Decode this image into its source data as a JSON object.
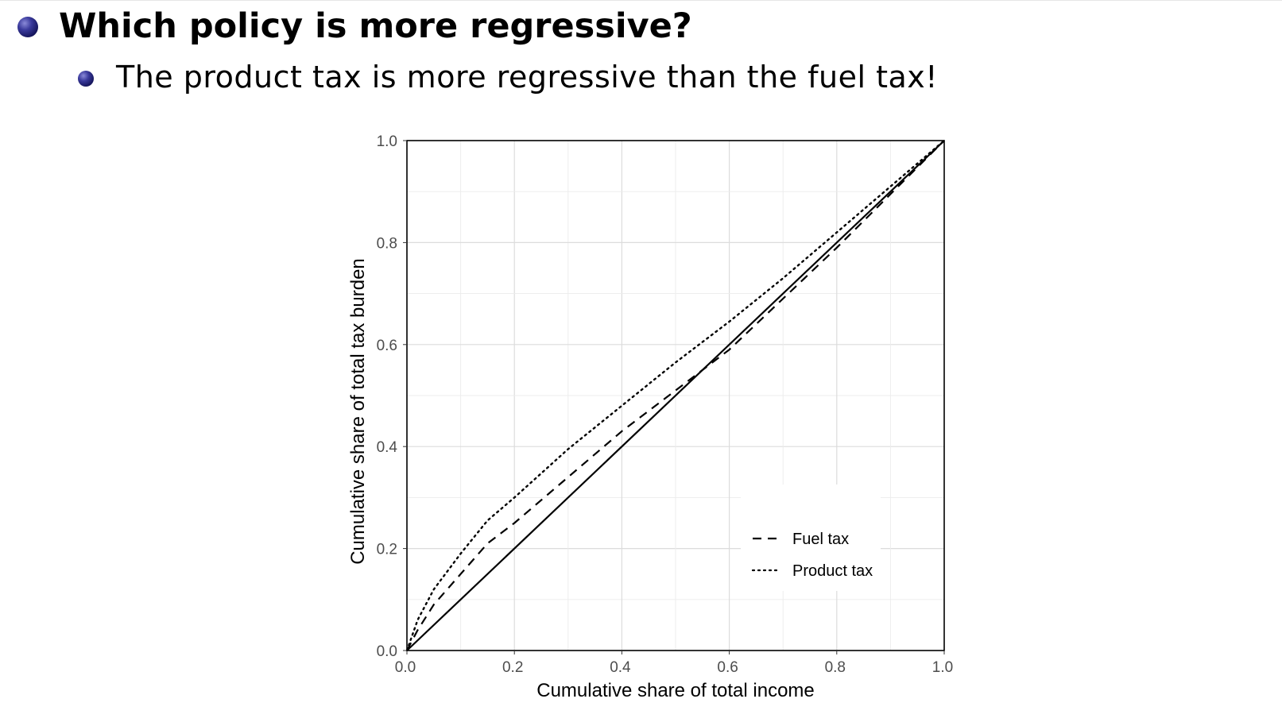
{
  "slide": {
    "heading": "Which policy is more regressive?",
    "subpoint": "The product tax is more regressive than the fuel tax!"
  },
  "chart_data": {
    "type": "line",
    "title": "",
    "xlabel": "Cumulative share of total income",
    "ylabel": "Cumulative share of total tax burden",
    "xlim": [
      0.0,
      1.0
    ],
    "ylim": [
      0.0,
      1.0
    ],
    "xticks": [
      "0.0",
      "0.2",
      "0.4",
      "0.6",
      "0.8",
      "1.0"
    ],
    "yticks": [
      "0.0",
      "0.2",
      "0.4",
      "0.6",
      "0.8",
      "1.0"
    ],
    "grid": true,
    "legend_position": "bottom-right",
    "series": [
      {
        "name": "",
        "style": "solid",
        "x": [
          0.0,
          1.0
        ],
        "y": [
          0.0,
          1.0
        ]
      },
      {
        "name": "Fuel tax",
        "style": "dashed",
        "x": [
          0.0,
          0.02,
          0.05,
          0.1,
          0.15,
          0.2,
          0.3,
          0.4,
          0.5,
          0.55,
          0.6,
          0.7,
          0.8,
          0.9,
          1.0
        ],
        "y": [
          0.0,
          0.04,
          0.09,
          0.15,
          0.21,
          0.25,
          0.34,
          0.43,
          0.51,
          0.55,
          0.59,
          0.69,
          0.79,
          0.895,
          1.0
        ]
      },
      {
        "name": "Product tax",
        "style": "dotted",
        "x": [
          0.0,
          0.02,
          0.05,
          0.1,
          0.15,
          0.2,
          0.3,
          0.4,
          0.5,
          0.6,
          0.7,
          0.8,
          0.9,
          1.0
        ],
        "y": [
          0.0,
          0.06,
          0.12,
          0.19,
          0.255,
          0.3,
          0.395,
          0.48,
          0.565,
          0.645,
          0.73,
          0.82,
          0.91,
          1.0
        ]
      }
    ]
  }
}
